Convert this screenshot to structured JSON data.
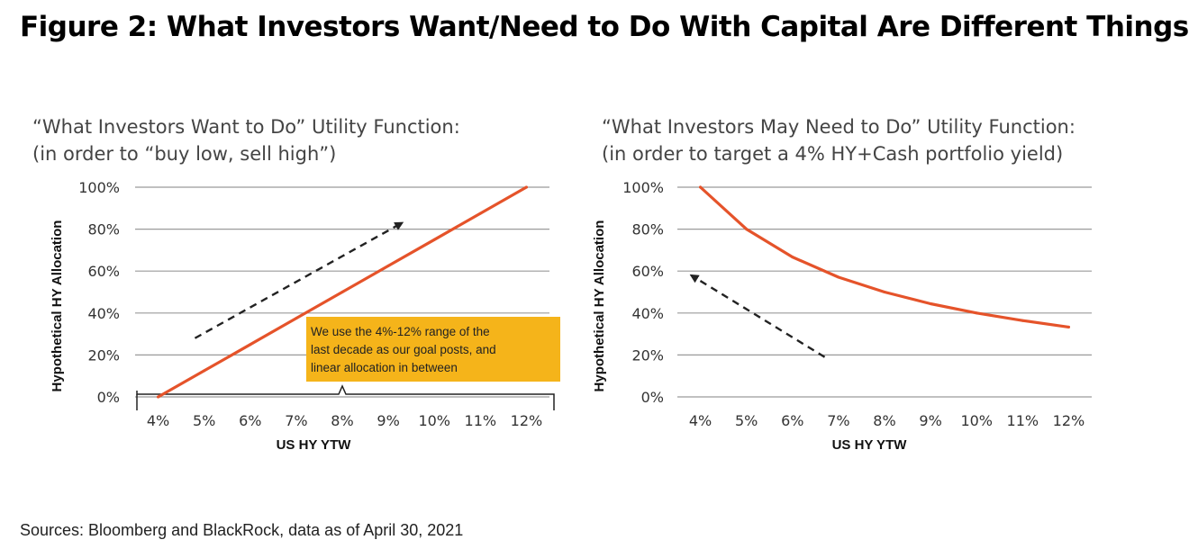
{
  "figure_title": "Figure 2: What Investors Want/Need to Do With Capital Are Different Things",
  "sources": "Sources: Bloomberg and BlackRock, data as of April 30, 2021",
  "colors": {
    "line": "#e5532a",
    "grid": "#9a9a9a",
    "annotation_bg": "#f5b41a",
    "arrow": "#222222"
  },
  "chart_data": [
    {
      "type": "line",
      "title_line1": "“What Investors Want to Do” Utility Function:",
      "title_line2": "(in order to “buy low, sell high”)",
      "xlabel": "US HY YTW",
      "ylabel": "Hypothetical HY Allocation",
      "categories": [
        "4%",
        "5%",
        "6%",
        "7%",
        "8%",
        "9%",
        "10%",
        "11%",
        "12%"
      ],
      "y_ticks": [
        "0%",
        "20%",
        "40%",
        "60%",
        "80%",
        "100%"
      ],
      "ylim": [
        0,
        100
      ],
      "xlim": [
        3.5,
        12.5
      ],
      "series": [
        {
          "name": "HY Allocation",
          "x": [
            4,
            5,
            6,
            7,
            8,
            9,
            10,
            11,
            12
          ],
          "values": [
            0,
            12.5,
            25,
            37.5,
            50,
            62.5,
            75,
            87.5,
            100
          ]
        }
      ],
      "annotation": {
        "text_lines": [
          "We use the 4%-12% range of the",
          "last decade as our goal posts, and",
          "linear allocation in between"
        ]
      },
      "trend_arrow": {
        "from": [
          4.8,
          28
        ],
        "to": [
          9.3,
          83
        ]
      }
    },
    {
      "type": "line",
      "title_line1": "“What Investors May Need to Do” Utility Function:",
      "title_line2": "(in order to target a 4% HY+Cash portfolio yield)",
      "xlabel": "US HY YTW",
      "ylabel": "Hypothetical HY Allocation",
      "categories": [
        "4%",
        "5%",
        "6%",
        "7%",
        "8%",
        "9%",
        "10%",
        "11%",
        "12%"
      ],
      "y_ticks": [
        "0%",
        "20%",
        "40%",
        "60%",
        "80%",
        "100%"
      ],
      "ylim": [
        0,
        100
      ],
      "xlim": [
        3.5,
        12.5
      ],
      "series": [
        {
          "name": "HY Allocation",
          "x": [
            4,
            5,
            6,
            7,
            8,
            9,
            10,
            11,
            12
          ],
          "values": [
            100,
            80,
            66.7,
            57.1,
            50,
            44.4,
            40,
            36.4,
            33.3
          ]
        }
      ],
      "trend_arrow": {
        "from": [
          6.7,
          19
        ],
        "to": [
          3.8,
          58
        ]
      }
    }
  ]
}
